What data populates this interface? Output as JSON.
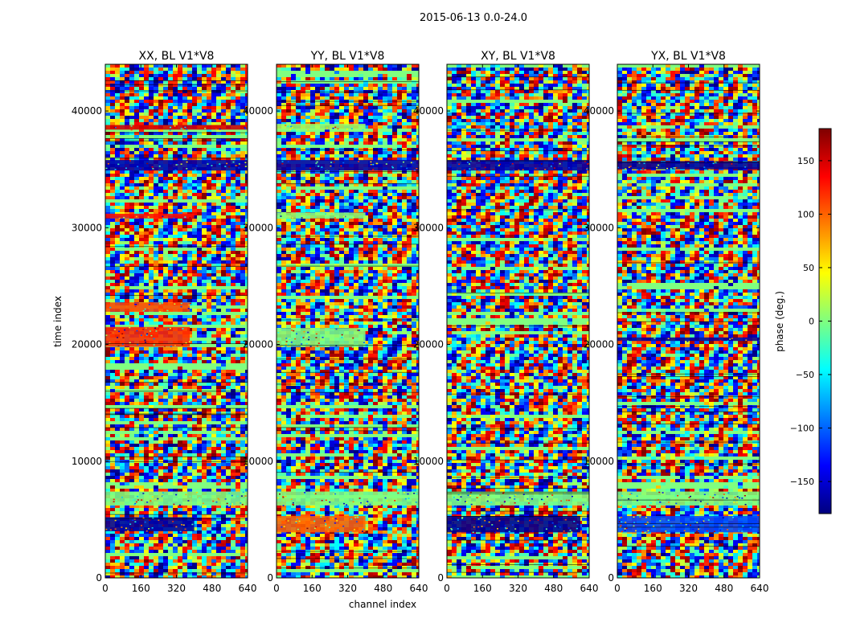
{
  "chart_data": {
    "type": "heatmap",
    "suptitle": "2015-06-13 0.0-24.0",
    "xlabel": "channel index",
    "ylabel": "time index",
    "xlim": [
      0,
      640
    ],
    "ylim": [
      0,
      44000
    ],
    "xticks": [
      0,
      160,
      320,
      480,
      640
    ],
    "yticks": [
      0,
      10000,
      20000,
      30000,
      40000
    ],
    "colorbar": {
      "label": "phase (deg.)",
      "range": [
        -180,
        180
      ],
      "ticks": [
        -150,
        -100,
        -50,
        0,
        50,
        100,
        150
      ],
      "colormap": "jet",
      "colors": [
        "#00007f",
        "#0000ff",
        "#007fff",
        "#00ffff",
        "#7fff7f",
        "#ffff00",
        "#ff7f00",
        "#ff0000",
        "#7f0000"
      ]
    },
    "panels": [
      {
        "title": "XX, BL V1*V8",
        "bands": [
          {
            "from": 4000,
            "to": 5200,
            "phase": -170,
            "channel_end": 400
          },
          {
            "from": 6200,
            "to": 7400,
            "phase": 0
          },
          {
            "from": 19800,
            "to": 21500,
            "phase": 120,
            "channel_end": 380
          },
          {
            "from": 22800,
            "to": 23600,
            "phase": 110,
            "channel_end": 380
          },
          {
            "from": 30800,
            "to": 31200,
            "phase": 130,
            "channel_end": 400
          },
          {
            "from": 34900,
            "to": 35800,
            "phase": -165
          },
          {
            "from": 38400,
            "to": 38800,
            "phase": 150
          }
        ]
      },
      {
        "title": "YY, BL V1*V8",
        "bands": [
          {
            "from": 3900,
            "to": 5300,
            "phase": 100,
            "channel_end": 400
          },
          {
            "from": 6200,
            "to": 7400,
            "phase": 0
          },
          {
            "from": 19800,
            "to": 21400,
            "phase": 0,
            "channel_end": 400
          },
          {
            "from": 30800,
            "to": 31300,
            "phase": 5,
            "channel_end": 400
          },
          {
            "from": 34900,
            "to": 35800,
            "phase": -165
          },
          {
            "from": 38400,
            "to": 38900,
            "phase": 10,
            "channel_end": 400
          }
        ]
      },
      {
        "title": "XY, BL V1*V8",
        "bands": [
          {
            "from": 3900,
            "to": 5300,
            "phase": -175,
            "channel_end": 600
          },
          {
            "from": 6200,
            "to": 7400,
            "phase": 0
          },
          {
            "from": 34900,
            "to": 35800,
            "phase": -165
          }
        ]
      },
      {
        "title": "YX, BL V1*V8",
        "bands": [
          {
            "from": 3900,
            "to": 5300,
            "phase": -110,
            "channel_end": 640
          },
          {
            "from": 6200,
            "to": 7400,
            "phase": 0
          },
          {
            "from": 35000,
            "to": 35700,
            "phase": -170
          },
          {
            "from": 20300,
            "to": 20600,
            "phase": -170
          }
        ]
      }
    ]
  }
}
